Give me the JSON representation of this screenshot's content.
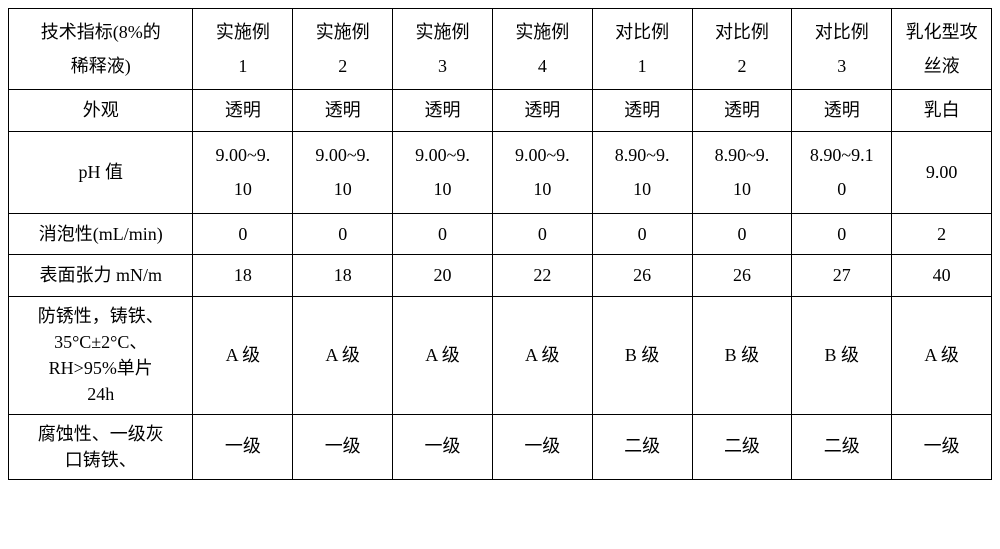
{
  "table": {
    "columns": [
      {
        "line1": "技术指标(8%的",
        "line2": "稀释液)"
      },
      {
        "line1": "实施例",
        "line2": "1"
      },
      {
        "line1": "实施例",
        "line2": "2"
      },
      {
        "line1": "实施例",
        "line2": "3"
      },
      {
        "line1": "实施例",
        "line2": "4"
      },
      {
        "line1": "对比例",
        "line2": "1"
      },
      {
        "line1": "对比例",
        "line2": "2"
      },
      {
        "line1": "对比例",
        "line2": "3"
      },
      {
        "line1": "乳化型攻",
        "line2": "丝液"
      }
    ],
    "rows": [
      {
        "label": "外观",
        "labelMulti": null,
        "cells": [
          "透明",
          "透明",
          "透明",
          "透明",
          "透明",
          "透明",
          "透明",
          "乳白"
        ],
        "cellsTwoLine": null
      },
      {
        "label": "pH 值",
        "labelMulti": null,
        "cells": null,
        "cellsTwoLine": [
          {
            "line1": "9.00~9.",
            "line2": "10"
          },
          {
            "line1": "9.00~9.",
            "line2": "10"
          },
          {
            "line1": "9.00~9.",
            "line2": "10"
          },
          {
            "line1": "9.00~9.",
            "line2": "10"
          },
          {
            "line1": "8.90~9.",
            "line2": "10"
          },
          {
            "line1": "8.90~9.",
            "line2": "10"
          },
          {
            "line1": "8.90~9.1",
            "line2": "0"
          },
          {
            "line1": "9.00",
            "line2": ""
          }
        ]
      },
      {
        "label": "消泡性(mL/min)",
        "labelMulti": null,
        "cells": [
          "0",
          "0",
          "0",
          "0",
          "0",
          "0",
          "0",
          "2"
        ],
        "cellsTwoLine": null
      },
      {
        "label": "表面张力 mN/m",
        "labelMulti": null,
        "cells": [
          "18",
          "18",
          "20",
          "22",
          "26",
          "26",
          "27",
          "40"
        ],
        "cellsTwoLine": null
      },
      {
        "label": null,
        "labelMulti": [
          "防锈性，铸铁、",
          "35°C±2°C、",
          "RH>95%单片",
          "24h"
        ],
        "cells": [
          "A 级",
          "A 级",
          "A 级",
          "A 级",
          "B 级",
          "B 级",
          "B 级",
          "A 级"
        ],
        "cellsTwoLine": null
      },
      {
        "label": null,
        "labelMulti": [
          "腐蚀性、一级灰",
          "口铸铁、"
        ],
        "cells": [
          "一级",
          "一级",
          "一级",
          "一级",
          "二级",
          "二级",
          "二级",
          "一级"
        ],
        "cellsTwoLine": null
      }
    ],
    "styling": {
      "border_color": "#000000",
      "background_color": "#ffffff",
      "text_color": "#000000",
      "font_family": "SimSun",
      "cell_font_size": 18,
      "col_label_width_pct": 17,
      "col_data_width_pct": 9.2
    }
  }
}
